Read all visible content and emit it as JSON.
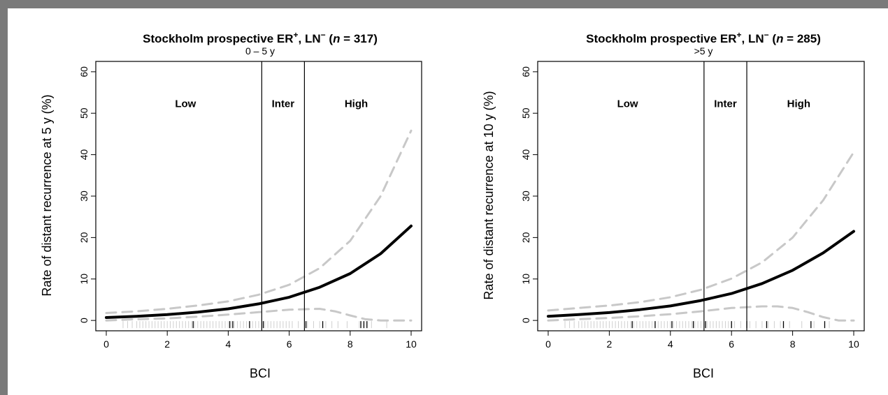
{
  "chart_data": [
    {
      "type": "line",
      "title_main": "Stockholm prospective ER",
      "title_er_sup": "+",
      "title_ln": ", LN",
      "title_ln_sup": "−",
      "title_open": " (",
      "title_n": "n",
      "title_count": " = 317)",
      "subtitle": "0 – 5 y",
      "xlabel": "BCI",
      "ylabel": "Rate of distant recurrence at 5 y  (%)",
      "xlim": [
        0,
        10
      ],
      "ylim": [
        -2.5,
        62.5
      ],
      "xticks": [
        0,
        2,
        4,
        6,
        8,
        10
      ],
      "yticks": [
        0,
        10,
        20,
        30,
        40,
        50,
        60
      ],
      "grid": false,
      "cutoffs": [
        5.1,
        6.5
      ],
      "regions": [
        {
          "label": "Low",
          "x": 2.6
        },
        {
          "label": "Inter",
          "x": 5.8
        },
        {
          "label": "High",
          "x": 8.2
        }
      ],
      "series": [
        {
          "role": "estimate",
          "style": "solid",
          "color": "#000000",
          "x": [
            0,
            1,
            2,
            3,
            4,
            5,
            6,
            7,
            8,
            9,
            10
          ],
          "y": [
            0.7,
            1.0,
            1.4,
            2.0,
            2.8,
            4.0,
            5.6,
            8.0,
            11.3,
            16.1,
            22.8
          ]
        },
        {
          "role": "upper-ci",
          "style": "dashed",
          "color": "#c8c8c8",
          "x": [
            0,
            1,
            2,
            3,
            4,
            5,
            6,
            7,
            8,
            9,
            10
          ],
          "y": [
            1.8,
            2.2,
            2.8,
            3.6,
            4.6,
            6.2,
            8.6,
            12.6,
            19.2,
            30.0,
            45.8
          ]
        },
        {
          "role": "lower-ci",
          "style": "dashed",
          "color": "#c8c8c8",
          "x": [
            0,
            1,
            2,
            3,
            4,
            5,
            6,
            7,
            7.5,
            8,
            8.5,
            9,
            10
          ],
          "y": [
            0.0,
            0.3,
            0.5,
            0.9,
            1.4,
            2.0,
            2.6,
            2.8,
            2.2,
            1.2,
            0.3,
            0.0,
            0.0
          ]
        }
      ],
      "rug_light": [
        0.55,
        0.7,
        0.85,
        1.0,
        1.1,
        1.2,
        1.3,
        1.4,
        1.5,
        1.6,
        1.7,
        1.8,
        1.9,
        2.0,
        2.1,
        2.2,
        2.3,
        2.4,
        2.5,
        2.6,
        2.7,
        2.8,
        2.9,
        3.0,
        3.1,
        3.2,
        3.3,
        3.4,
        3.5,
        3.6,
        3.7,
        3.8,
        3.9,
        4.0,
        4.1,
        4.2,
        4.3,
        4.4,
        4.5,
        4.6,
        4.7,
        4.8,
        4.9,
        5.0,
        5.2,
        5.3,
        5.4,
        5.5,
        5.6,
        5.7,
        5.8,
        5.9,
        6.0,
        6.1,
        6.3,
        6.6,
        6.8,
        7.0,
        7.2,
        7.4,
        7.6,
        7.9,
        8.3,
        8.7,
        9.2
      ],
      "rug_dark": [
        2.85,
        4.05,
        4.15,
        4.7,
        5.15,
        6.55,
        7.1,
        8.35,
        8.45,
        8.55
      ]
    },
    {
      "type": "line",
      "title_main": "Stockholm prospective ER",
      "title_er_sup": "+",
      "title_ln": ", LN",
      "title_ln_sup": "−",
      "title_open": " (",
      "title_n": "n",
      "title_count": " = 285)",
      "subtitle": ">5 y",
      "xlabel": "BCI",
      "ylabel": "Rate of distant recurrence at 10 y  (%)",
      "xlim": [
        0,
        10
      ],
      "ylim": [
        -2.5,
        62.5
      ],
      "xticks": [
        0,
        2,
        4,
        6,
        8,
        10
      ],
      "yticks": [
        0,
        10,
        20,
        30,
        40,
        50,
        60
      ],
      "grid": false,
      "cutoffs": [
        5.1,
        6.5
      ],
      "regions": [
        {
          "label": "Low",
          "x": 2.6
        },
        {
          "label": "Inter",
          "x": 5.8
        },
        {
          "label": "High",
          "x": 8.2
        }
      ],
      "series": [
        {
          "role": "estimate",
          "style": "solid",
          "color": "#000000",
          "x": [
            0,
            1,
            2,
            3,
            4,
            5,
            6,
            7,
            8,
            9,
            10
          ],
          "y": [
            1.0,
            1.4,
            1.9,
            2.6,
            3.5,
            4.8,
            6.5,
            8.9,
            12.1,
            16.3,
            21.5
          ]
        },
        {
          "role": "upper-ci",
          "style": "dashed",
          "color": "#c8c8c8",
          "x": [
            0,
            1,
            2,
            3,
            4,
            5,
            6,
            7,
            8,
            9,
            10
          ],
          "y": [
            2.4,
            3.0,
            3.6,
            4.4,
            5.6,
            7.4,
            10.1,
            14.0,
            20.0,
            29.0,
            40.6
          ]
        },
        {
          "role": "lower-ci",
          "style": "dashed",
          "color": "#c8c8c8",
          "x": [
            0,
            1,
            2,
            3,
            4,
            5,
            6,
            7,
            7.5,
            8,
            8.5,
            9,
            9.5,
            10
          ],
          "y": [
            0.0,
            0.3,
            0.6,
            1.0,
            1.5,
            2.2,
            3.0,
            3.4,
            3.4,
            3.0,
            2.0,
            0.8,
            0.0,
            0.0
          ]
        }
      ],
      "rug_light": [
        0.55,
        0.7,
        0.85,
        1.0,
        1.1,
        1.2,
        1.3,
        1.4,
        1.5,
        1.6,
        1.7,
        1.8,
        1.9,
        2.0,
        2.1,
        2.2,
        2.3,
        2.4,
        2.5,
        2.6,
        2.7,
        2.8,
        2.9,
        3.0,
        3.1,
        3.2,
        3.3,
        3.4,
        3.5,
        3.6,
        3.7,
        3.8,
        3.9,
        4.0,
        4.1,
        4.2,
        4.3,
        4.4,
        4.5,
        4.6,
        4.7,
        4.8,
        4.9,
        5.0,
        5.2,
        5.3,
        5.4,
        5.5,
        5.6,
        5.7,
        5.8,
        5.9,
        6.0,
        6.1,
        6.3,
        6.6,
        6.8,
        7.0,
        7.2,
        7.4,
        7.6,
        7.9,
        8.3,
        8.7,
        9.2
      ],
      "rug_dark": [
        2.75,
        3.5,
        4.05,
        4.75,
        5.15,
        6.0,
        6.5,
        7.15,
        7.7,
        8.6,
        9.05
      ]
    }
  ]
}
